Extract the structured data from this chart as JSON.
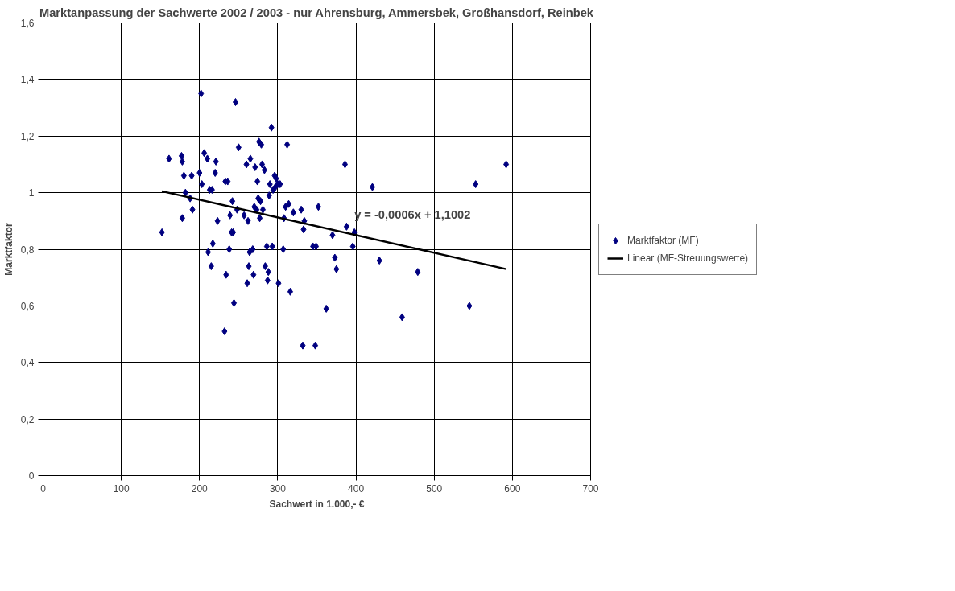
{
  "chart_data": {
    "type": "scatter",
    "title": "Marktanpassung der Sachwerte 2002 / 2003 - nur Ahrensburg, Ammersbek, Großhansdorf, Reinbek",
    "xlabel": "Sachwert in 1.000,- €",
    "ylabel": "Marktfaktor",
    "xlim": [
      0,
      700
    ],
    "xticks": [
      0,
      100,
      200,
      300,
      400,
      500,
      600,
      700
    ],
    "ylim": [
      0,
      1.6
    ],
    "yticks": [
      {
        "value": 0,
        "label": "0"
      },
      {
        "value": 0.2,
        "label": "0,2"
      },
      {
        "value": 0.4,
        "label": "0,4"
      },
      {
        "value": 0.6,
        "label": "0,6"
      },
      {
        "value": 0.8,
        "label": "0,8"
      },
      {
        "value": 1,
        "label": "1"
      },
      {
        "value": 1.2,
        "label": "1,2"
      },
      {
        "value": 1.4,
        "label": "1,4"
      },
      {
        "value": 1.6,
        "label": "1,6"
      }
    ],
    "grid": true,
    "legend": "right",
    "annotations": [
      {
        "text": "y = -0,0006x + 1,1002",
        "x": 398,
        "y": 0.88
      }
    ],
    "series": [
      {
        "name": "Marktfaktor (MF)",
        "marker": "diamond",
        "color": "#000080",
        "x": [
          152,
          161,
          177,
          178,
          178,
          180,
          182,
          188,
          190,
          191,
          200,
          202,
          203,
          206,
          210,
          211,
          213,
          215,
          216,
          217,
          220,
          221,
          223,
          232,
          233,
          234,
          236,
          238,
          239,
          241,
          242,
          243,
          244,
          246,
          248,
          250,
          257,
          260,
          261,
          262,
          263,
          264,
          265,
          268,
          269,
          270,
          271,
          273,
          274,
          275,
          276,
          277,
          278,
          279,
          280,
          281,
          283,
          284,
          286,
          287,
          288,
          289,
          290,
          292,
          293,
          294,
          296,
          297,
          298,
          300,
          301,
          303,
          307,
          308,
          310,
          312,
          314,
          316,
          320,
          330,
          332,
          333,
          334,
          345,
          348,
          349,
          352,
          362,
          370,
          373,
          375,
          386,
          388,
          396,
          398,
          421,
          430,
          459,
          479,
          545,
          553,
          592
        ],
        "values": [
          0.86,
          1.12,
          1.13,
          1.11,
          0.91,
          1.06,
          1.0,
          0.98,
          1.06,
          0.94,
          1.07,
          1.35,
          1.03,
          1.14,
          1.12,
          0.79,
          1.01,
          0.74,
          1.01,
          0.82,
          1.07,
          1.11,
          0.9,
          0.51,
          1.04,
          0.71,
          1.04,
          0.8,
          0.92,
          0.86,
          0.97,
          0.86,
          0.61,
          1.32,
          0.94,
          1.16,
          0.92,
          1.1,
          0.68,
          0.9,
          0.74,
          0.79,
          1.12,
          0.8,
          0.71,
          0.95,
          1.09,
          0.94,
          1.04,
          0.98,
          1.18,
          0.91,
          0.97,
          1.17,
          1.1,
          0.94,
          1.08,
          0.74,
          0.81,
          0.69,
          0.72,
          0.99,
          1.03,
          1.23,
          0.81,
          1.01,
          1.06,
          1.02,
          1.05,
          1.03,
          0.68,
          1.03,
          0.8,
          0.91,
          0.95,
          1.17,
          0.96,
          0.65,
          0.93,
          0.94,
          0.46,
          0.87,
          0.9,
          0.81,
          0.46,
          0.81,
          0.95,
          0.59,
          0.85,
          0.77,
          0.73,
          1.1,
          0.88,
          0.81,
          0.86,
          1.02,
          0.76,
          0.56,
          0.72,
          0.6,
          1.03,
          1.1
        ]
      },
      {
        "name": "Linear (MF-Streuungswerte)",
        "type": "line",
        "marker": "none",
        "color": "#000000",
        "x": [
          152,
          592
        ],
        "values": [
          1.005,
          0.73
        ]
      }
    ]
  }
}
